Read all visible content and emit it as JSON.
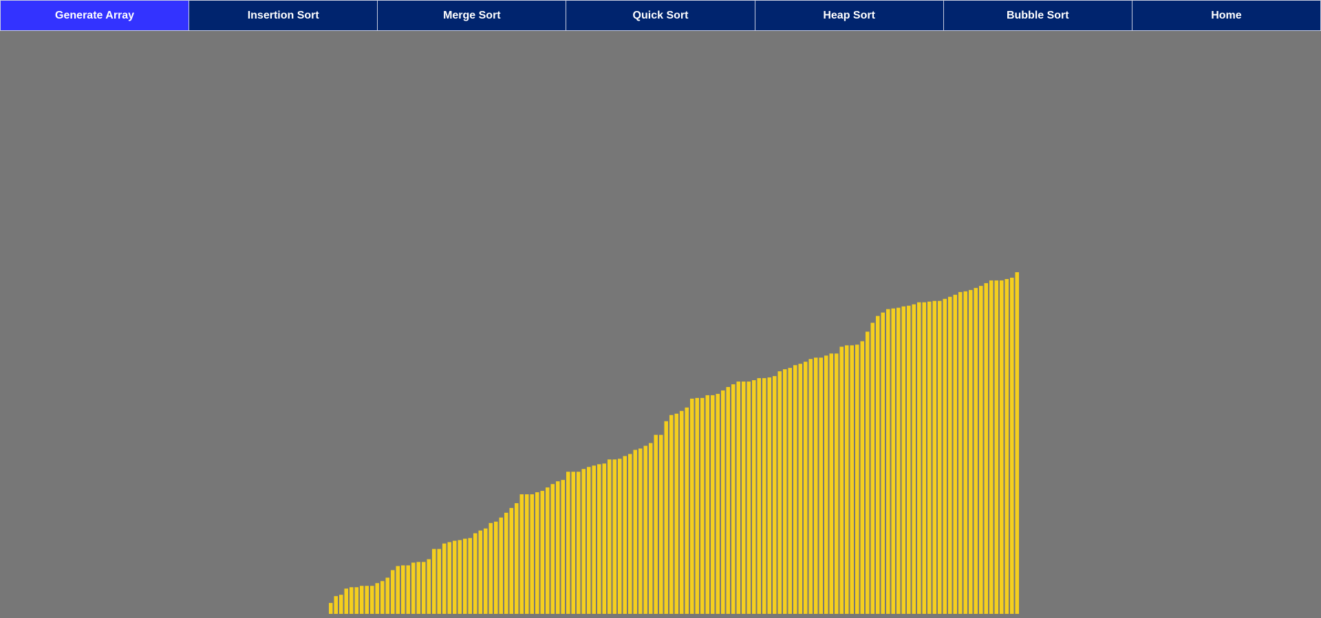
{
  "navbar": {
    "buttons": [
      {
        "name": "generate-array-button",
        "label": "Generate Array",
        "active": true
      },
      {
        "name": "insertion-sort-button",
        "label": "Insertion Sort",
        "active": false
      },
      {
        "name": "merge-sort-button",
        "label": "Merge Sort",
        "active": false
      },
      {
        "name": "quick-sort-button",
        "label": "Quick Sort",
        "active": false
      },
      {
        "name": "heap-sort-button",
        "label": "Heap Sort",
        "active": false
      },
      {
        "name": "bubble-sort-button",
        "label": "Bubble Sort",
        "active": false
      },
      {
        "name": "home-button",
        "label": "Home",
        "active": false
      }
    ]
  },
  "colors": {
    "background": "#777777",
    "nav_bg": "#00246e",
    "nav_active": "#3333ff",
    "bar": "#f5cf1e"
  },
  "chart_data": {
    "type": "bar",
    "ylim": [
      0,
      500
    ],
    "values": [
      16,
      26,
      28,
      37,
      39,
      39,
      41,
      41,
      41,
      45,
      48,
      53,
      64,
      70,
      71,
      71,
      75,
      76,
      76,
      80,
      95,
      95,
      103,
      105,
      107,
      108,
      110,
      111,
      118,
      122,
      125,
      133,
      135,
      141,
      148,
      155,
      162,
      175,
      175,
      175,
      178,
      180,
      185,
      190,
      194,
      196,
      208,
      208,
      208,
      212,
      215,
      217,
      219,
      220,
      226,
      226,
      227,
      231,
      234,
      240,
      242,
      246,
      250,
      262,
      262,
      282,
      291,
      293,
      297,
      302,
      315,
      316,
      316,
      320,
      320,
      322,
      327,
      332,
      336,
      340,
      340,
      340,
      342,
      345,
      345,
      346,
      348,
      355,
      358,
      360,
      364,
      366,
      369,
      373,
      375,
      375,
      378,
      381,
      381,
      391,
      393,
      393,
      394,
      399,
      413,
      426,
      436,
      441,
      446,
      447,
      448,
      450,
      451,
      453,
      456,
      456,
      457,
      458,
      458,
      461,
      464,
      467,
      471,
      472,
      474,
      477,
      480,
      484,
      488,
      488,
      488,
      490,
      492,
      500
    ]
  }
}
